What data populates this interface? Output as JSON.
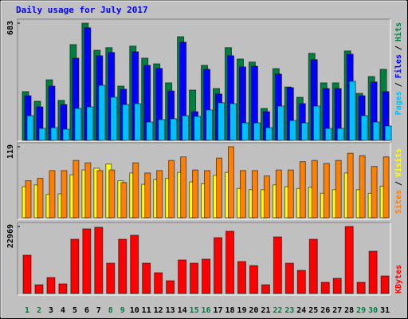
{
  "chart_data": [
    {
      "type": "bar",
      "title": "Daily usage for July 2017",
      "categories": [
        "1",
        "2",
        "3",
        "4",
        "5",
        "6",
        "7",
        "8",
        "9",
        "10",
        "11",
        "12",
        "13",
        "14",
        "15",
        "16",
        "17",
        "18",
        "19",
        "20",
        "21",
        "22",
        "23",
        "24",
        "25",
        "26",
        "27",
        "28",
        "29",
        "30",
        "31"
      ],
      "category_colors": [
        "#008040",
        "#008040",
        "#000000",
        "#000000",
        "#000000",
        "#000000",
        "#000000",
        "#008040",
        "#008040",
        "#000000",
        "#000000",
        "#000000",
        "#000000",
        "#000000",
        "#008040",
        "#008040",
        "#000000",
        "#000000",
        "#000000",
        "#000000",
        "#000000",
        "#008040",
        "#008040",
        "#000000",
        "#000000",
        "#000000",
        "#000000",
        "#000000",
        "#008040",
        "#008040",
        "#000000"
      ],
      "ylim": [
        0,
        683
      ],
      "yticks": [
        683
      ],
      "legend_separator": "/",
      "series": [
        {
          "name": "Hits",
          "color": "#008040",
          "values": [
            284,
            228,
            353,
            233,
            558,
            683,
            525,
            540,
            316,
            549,
            479,
            446,
            335,
            604,
            293,
            437,
            302,
            540,
            474,
            456,
            186,
            418,
            311,
            251,
            507,
            335,
            335,
            521,
            274,
            372,
            414
          ]
        },
        {
          "name": "Files",
          "color": "#0000ff",
          "values": [
            260,
            195,
            316,
            209,
            479,
            656,
            493,
            512,
            298,
            516,
            437,
            419,
            288,
            572,
            167,
            414,
            270,
            493,
            428,
            432,
            167,
            386,
            307,
            214,
            470,
            302,
            302,
            502,
            260,
            340,
            284
          ]
        },
        {
          "name": "Pages",
          "color": "#00c0ff",
          "values": [
            144,
            70,
            74,
            65,
            186,
            195,
            321,
            251,
            209,
            214,
            107,
            121,
            126,
            144,
            140,
            177,
            219,
            214,
            102,
            102,
            74,
            200,
            116,
            102,
            200,
            70,
            70,
            344,
            144,
            107,
            84
          ]
        }
      ]
    },
    {
      "type": "bar",
      "ylim": [
        0,
        119
      ],
      "yticks": [
        119
      ],
      "legend_separator": "/",
      "series": [
        {
          "name": "Visits",
          "color": "#ffff00",
          "values": [
            52,
            55,
            39,
            40,
            72,
            80,
            83,
            90,
            62,
            75,
            56,
            64,
            66,
            76,
            60,
            57,
            71,
            76,
            49,
            47,
            47,
            55,
            52,
            49,
            51,
            41,
            47,
            75,
            47,
            41,
            53
          ]
        },
        {
          "name": "Sites",
          "color": "#ff8000",
          "values": [
            62,
            66,
            79,
            79,
            96,
            92,
            79,
            80,
            59,
            92,
            75,
            79,
            96,
            102,
            80,
            79,
            100,
            119,
            79,
            79,
            70,
            80,
            80,
            94,
            96,
            91,
            96,
            108,
            104,
            86,
            102
          ]
        }
      ]
    },
    {
      "type": "bar",
      "ylim": [
        0,
        22969
      ],
      "yticks": [
        22969
      ],
      "series": [
        {
          "name": "KBytes",
          "color": "#ff0000",
          "values": [
            13125,
            3000,
            5470,
            3280,
            18590,
            22150,
            22690,
            10390,
            18590,
            19960,
            10390,
            7110,
            4370,
            11480,
            10390,
            11760,
            19140,
            21330,
            10940,
            9570,
            3000,
            19410,
            10390,
            7930,
            18590,
            3830,
            5190,
            22969,
            3830,
            14490,
            6010
          ]
        }
      ]
    }
  ]
}
